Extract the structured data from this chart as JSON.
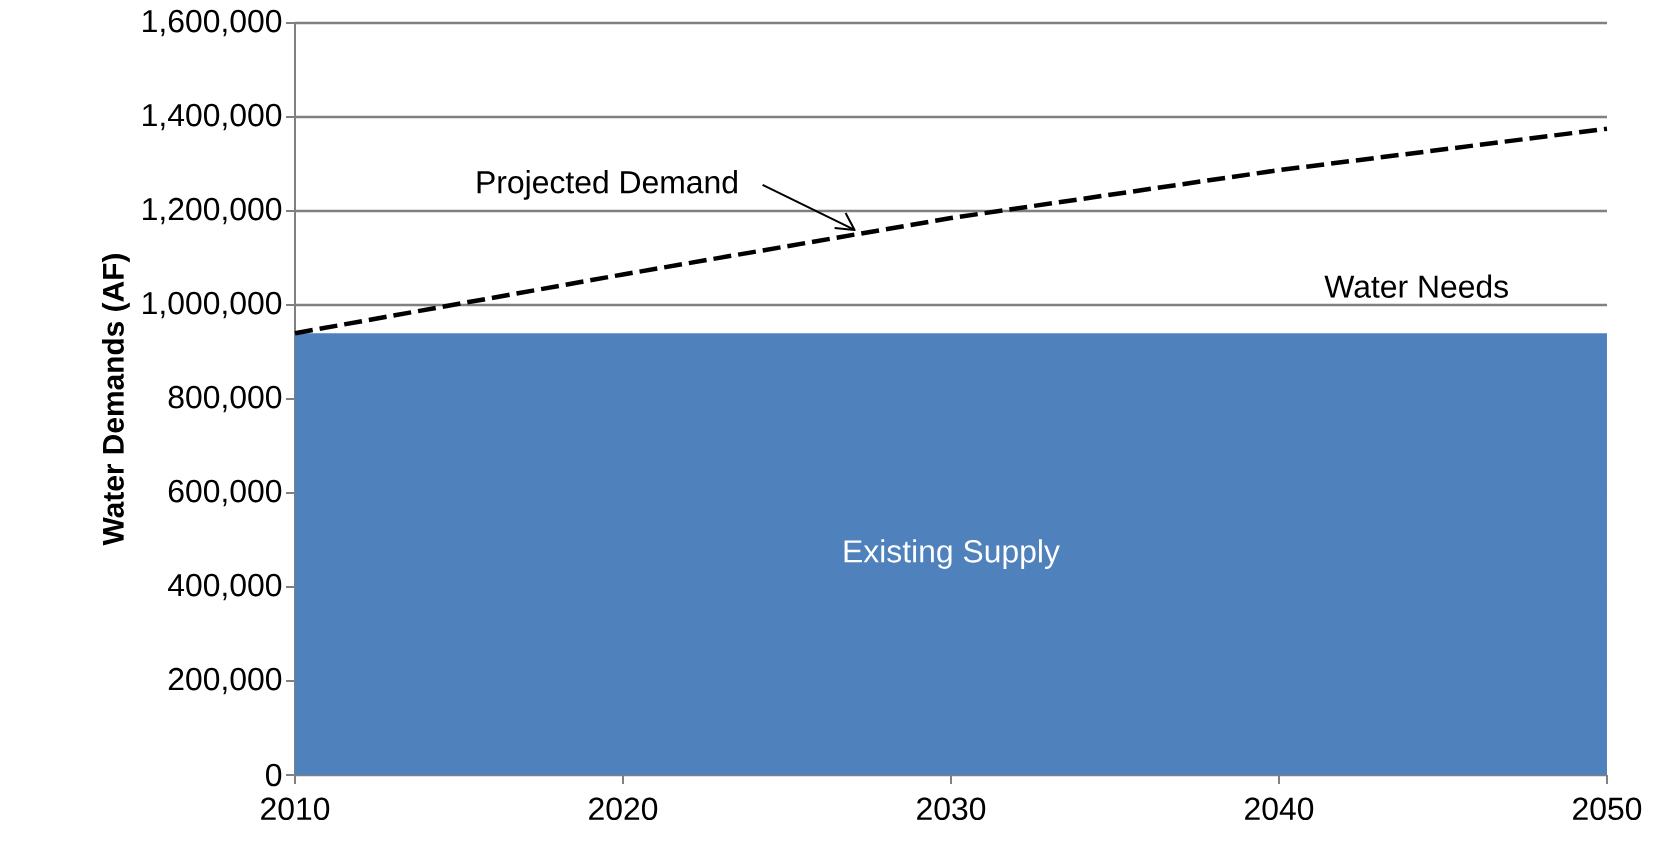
{
  "chart_data": {
    "type": "area",
    "ylabel": "Water Demands (AF)",
    "x": [
      2010,
      2020,
      2030,
      2040,
      2050
    ],
    "xlim": [
      2010,
      2050
    ],
    "xticks": [
      2010,
      2020,
      2030,
      2040,
      2050
    ],
    "ylim": [
      0,
      1600000
    ],
    "yticks": [
      {
        "value": 0,
        "label": "0"
      },
      {
        "value": 200000,
        "label": "200,000"
      },
      {
        "value": 400000,
        "label": "400,000"
      },
      {
        "value": 600000,
        "label": "600,000"
      },
      {
        "value": 800000,
        "label": "800,000"
      },
      {
        "value": 1000000,
        "label": "1,000,000"
      },
      {
        "value": 1200000,
        "label": "1,200,000"
      },
      {
        "value": 1400000,
        "label": "1,400,000"
      },
      {
        "value": 1600000,
        "label": "1,600,000"
      }
    ],
    "grid": "y",
    "series": [
      {
        "name": "Existing Supply",
        "color": "#4f81bd",
        "values": [
          940000,
          940000,
          940000,
          940000,
          940000
        ]
      },
      {
        "name": "Projected Demand",
        "type": "line",
        "color": "#000000",
        "line_style": "dashed",
        "values": [
          940000,
          1065000,
          1185000,
          1287000,
          1375000
        ]
      }
    ],
    "annotations": [
      "Water Needs"
    ]
  }
}
